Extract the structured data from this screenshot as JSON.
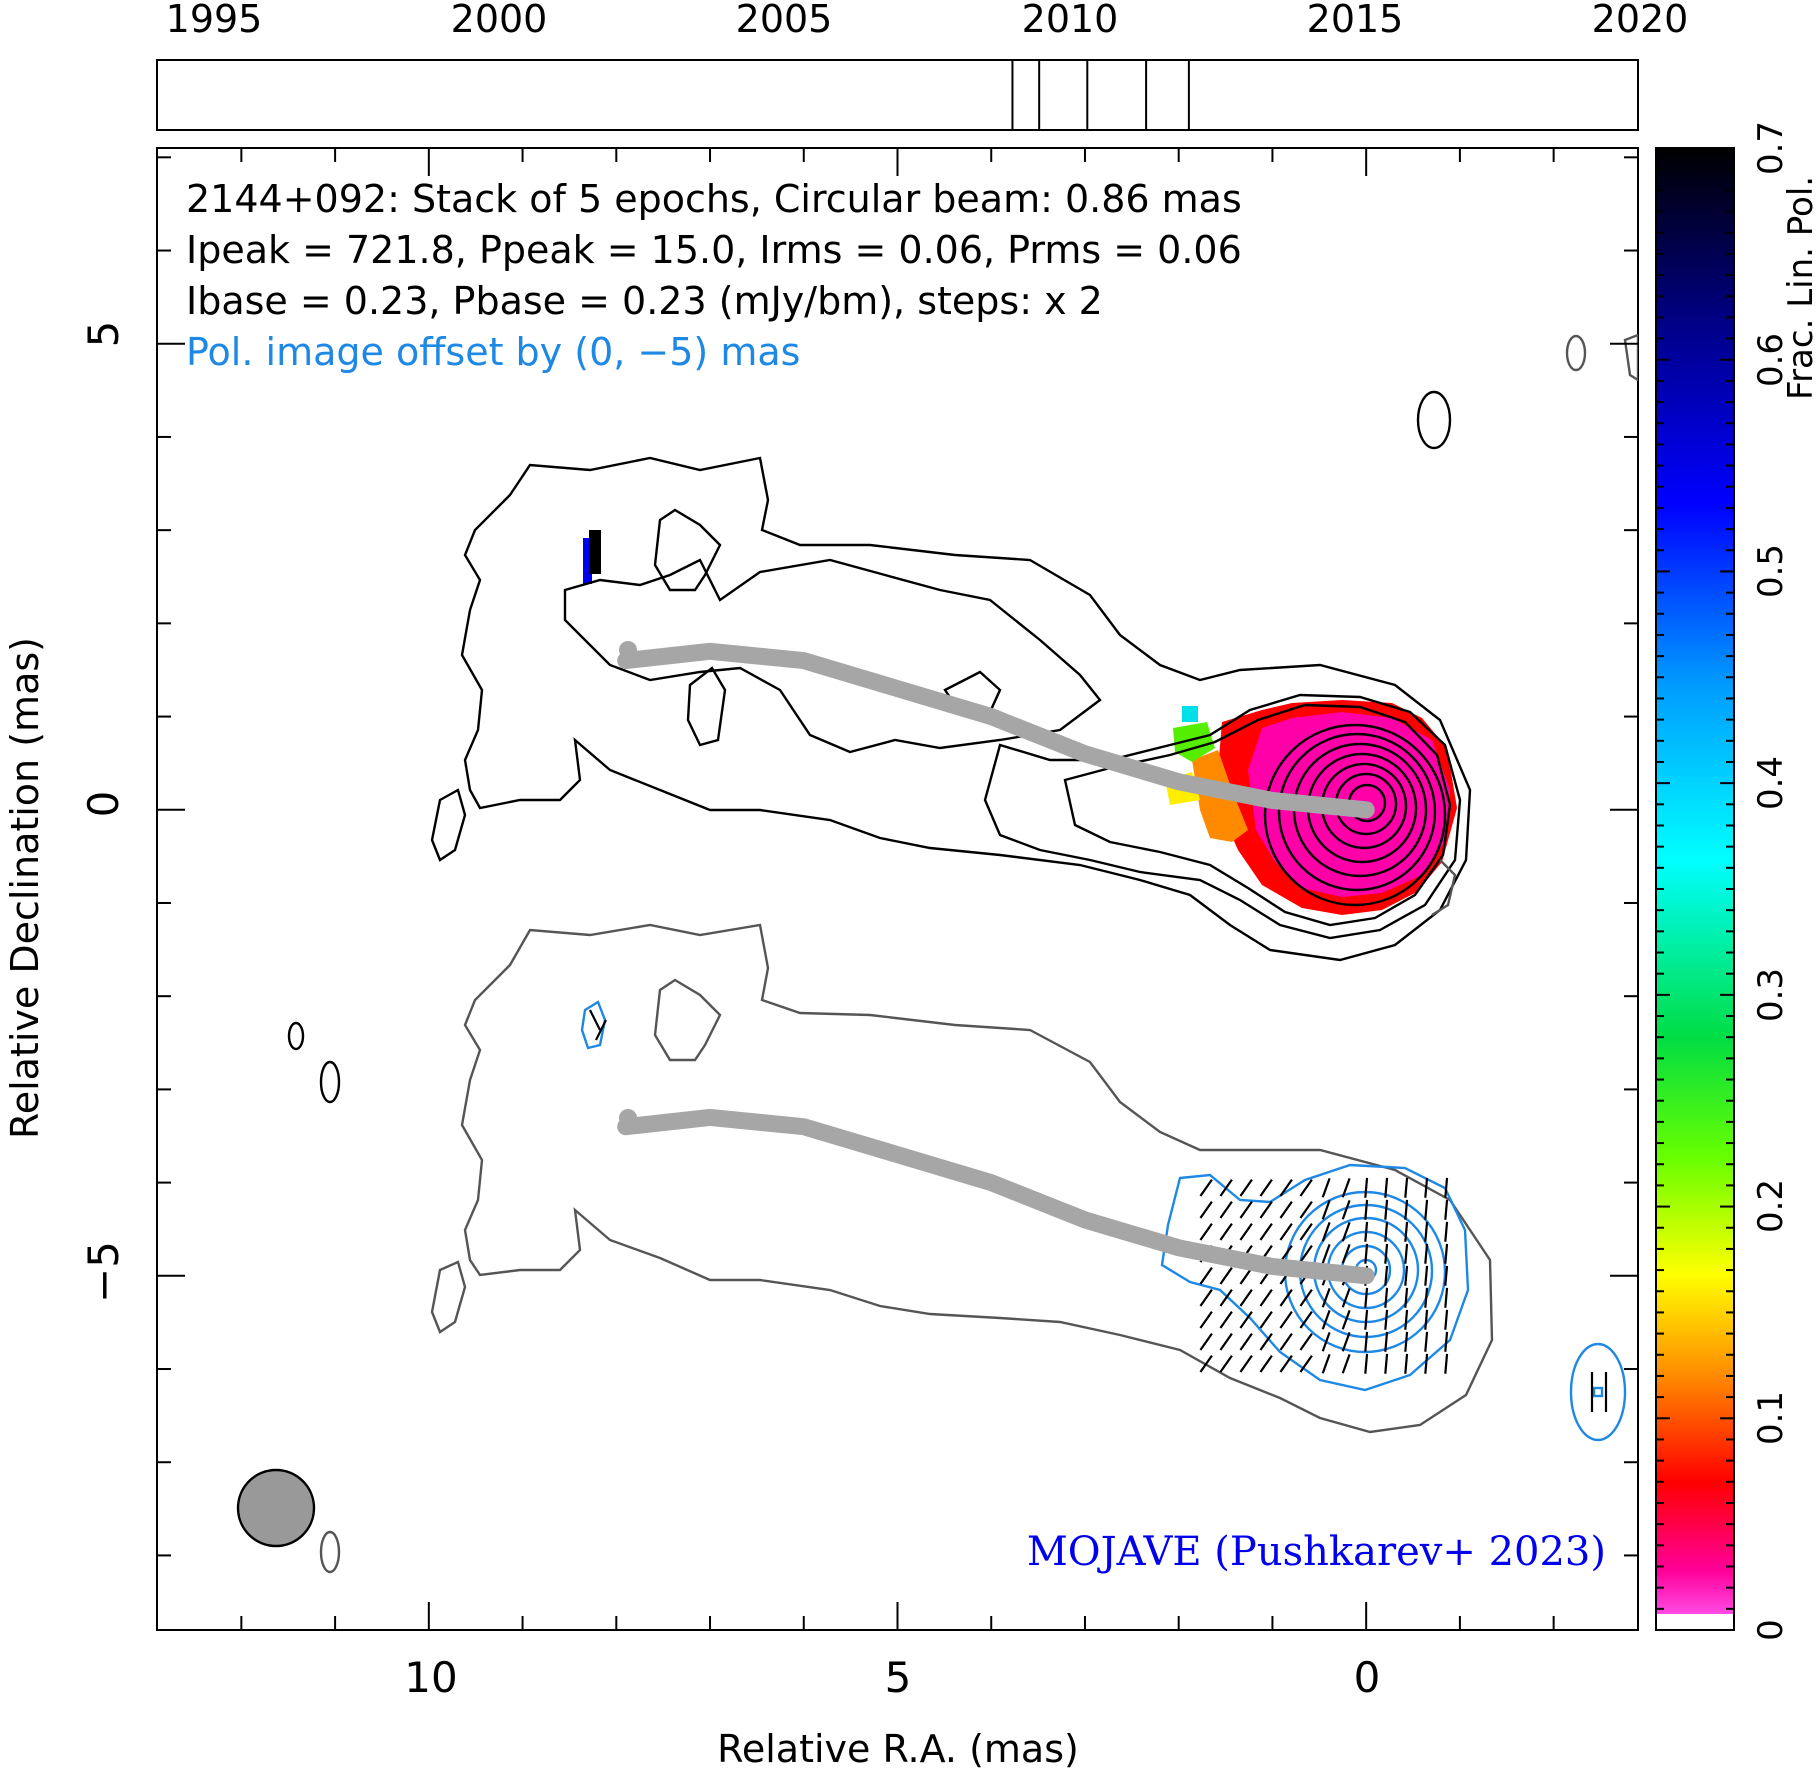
{
  "chart_data": {
    "type": "contour-map",
    "source": "2144+092",
    "header_lines": [
      "2144+092: Stack of 5 epochs, Circular beam: 0.86 mas",
      "Ipeak = 721.8, Ppeak = 15.0, Irms = 0.06, Prms = 0.06",
      "Ibase = 0.23, Pbase = 0.23 (mJy/bm), steps: x 2"
    ],
    "offset_note": "Pol. image offset by (0, −5) mas",
    "credit": "MOJAVE (Pushkarev+ 2023)",
    "xlabel": "Relative R.A. (mas)",
    "ylabel": "Relative Declination (mas)",
    "xlim": [
      12.9,
      -2.9
    ],
    "ylim": [
      -8.8,
      7.1
    ],
    "xticks": [
      10,
      5,
      0
    ],
    "xtick_labels": [
      "10",
      "5",
      "0"
    ],
    "yticks": [
      5,
      0,
      -5
    ],
    "ytick_labels": [
      "5",
      "0",
      "−5"
    ],
    "colorbar": {
      "label": "Frac. Lin. Pol.",
      "range": [
        0,
        0.7
      ],
      "ticks": [
        0,
        0.1,
        0.2,
        0.3,
        0.4,
        0.5,
        0.6,
        0.7
      ],
      "tick_labels": [
        "0",
        "0.1",
        "0.2",
        "0.3",
        "0.4",
        "0.5",
        "0.6",
        "0.7"
      ]
    },
    "timeline": {
      "range": [
        1993.5,
        2021.2
      ],
      "ticks": [
        1995,
        2000,
        2005,
        2010,
        2015,
        2020
      ],
      "tick_labels": [
        "1995",
        "2000",
        "2005",
        "2010",
        "2015",
        "2020"
      ],
      "epochs": [
        2009.5,
        2010.0,
        2010.9,
        2012.0,
        2012.8
      ]
    },
    "ridge_line": [
      [
        7.9,
        1.6
      ],
      [
        7.0,
        1.7
      ],
      [
        6.0,
        1.6
      ],
      [
        5.0,
        1.3
      ],
      [
        4.0,
        1.0
      ],
      [
        3.0,
        0.6
      ],
      [
        2.0,
        0.3
      ],
      [
        1.0,
        0.1
      ],
      [
        0.0,
        0.0
      ]
    ],
    "beam_diameter_mas": 0.86,
    "beam_position": [
      11.8,
      -7.6
    ],
    "stokes_i_contours": 9,
    "pol_contours": 7
  }
}
